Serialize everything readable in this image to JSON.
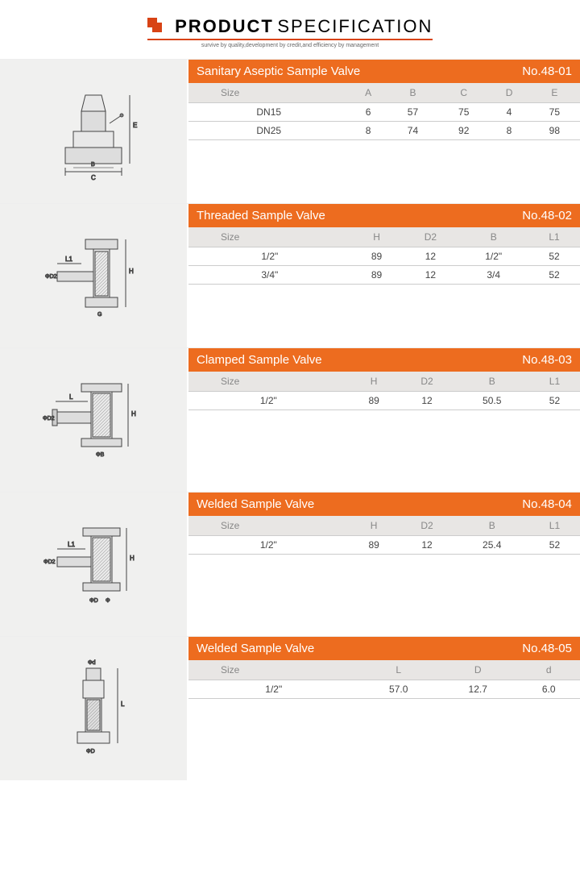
{
  "header": {
    "title_main": "PRODUCT",
    "title_spec": "SPECIFICATION",
    "subtitle": "survive by quality,development by credit,and efficiency by management"
  },
  "sections": [
    {
      "title": "Sanitary Aseptic Sample Valve",
      "number": "No.48-01",
      "columns": [
        "Size",
        "A",
        "B",
        "C",
        "D",
        "E"
      ],
      "rows": [
        [
          "DN15",
          "6",
          "57",
          "75",
          "4",
          "75"
        ],
        [
          "DN25",
          "8",
          "74",
          "92",
          "8",
          "98"
        ]
      ]
    },
    {
      "title": "Threaded Sample Valve",
      "number": "No.48-02",
      "columns": [
        "Size",
        "H",
        "D2",
        "B",
        "L1"
      ],
      "rows": [
        [
          "1/2\"",
          "89",
          "12",
          "1/2\"",
          "52"
        ],
        [
          "3/4\"",
          "89",
          "12",
          "3/4",
          "52"
        ]
      ]
    },
    {
      "title": "Clamped Sample Valve",
      "number": "No.48-03",
      "columns": [
        "Size",
        "H",
        "D2",
        "B",
        "L1"
      ],
      "rows": [
        [
          "1/2\"",
          "89",
          "12",
          "50.5",
          "52"
        ]
      ]
    },
    {
      "title": "Welded Sample Valve",
      "number": "No.48-04",
      "columns": [
        "Size",
        "H",
        "D2",
        "B",
        "L1"
      ],
      "rows": [
        [
          "1/2\"",
          "89",
          "12",
          "25.4",
          "52"
        ]
      ]
    },
    {
      "title": "Welded Sample Valve",
      "number": "No.48-05",
      "columns": [
        "Size",
        "L",
        "D",
        "d"
      ],
      "rows": [
        [
          "1/2\"",
          "57.0",
          "12.7",
          "6.0"
        ]
      ]
    }
  ],
  "colors": {
    "header_bg": "#ed6c1f",
    "diagram_bg": "#f0f0ef",
    "subhead_bg": "#e8e6e4"
  }
}
